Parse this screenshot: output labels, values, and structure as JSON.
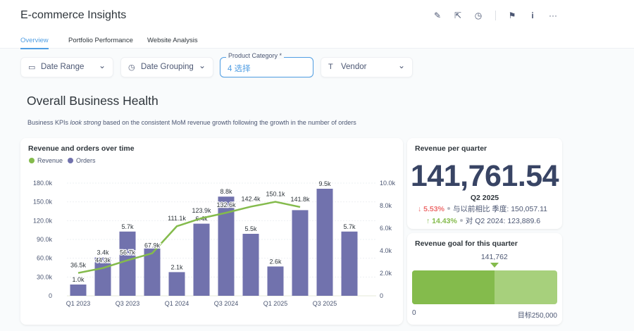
{
  "header": {
    "title": "E-commerce Insights",
    "icons": [
      "pencil-icon",
      "share-icon",
      "clock-icon",
      "bookmark-icon",
      "info-icon",
      "more-icon"
    ]
  },
  "tabs": [
    {
      "label": "Overview",
      "active": true
    },
    {
      "label": "Portfolio Performance"
    },
    {
      "label": "Website Analysis"
    }
  ],
  "filters": {
    "date_range": "Date Range",
    "date_grouping": "Date Grouping",
    "product_category": {
      "label": "Product Category *",
      "value": "4 选择"
    },
    "vendor": "Vendor"
  },
  "section": {
    "title": "Overall Business Health",
    "desc_before": "Business KPIs ",
    "desc_em": "look strong",
    "desc_after": " based on the consistent MoM revenue growth following the growth in the number of orders"
  },
  "chart_data": {
    "type": "bar",
    "title": "Revenue and orders over time",
    "categories": [
      "Q1 2023",
      "Q2 2023",
      "Q3 2023",
      "Q4 2023",
      "Q1 2024",
      "Q2 2024",
      "Q3 2024",
      "Q4 2024",
      "Q1 2025",
      "Q2 2025",
      "Q3 2025",
      "Q4 2025"
    ],
    "x_tick_labels": [
      "Q1 2023",
      "Q3 2023",
      "Q1 2024",
      "Q3 2024",
      "Q1 2025",
      "Q3 2025"
    ],
    "left_ticks": [
      "0",
      "30.0k",
      "60.0k",
      "90.0k",
      "120.0k",
      "150.0k",
      "180.0k"
    ],
    "right_ticks": [
      "0",
      "2.0k",
      "4.0k",
      "6.0k",
      "8.0k",
      "10.0k"
    ],
    "ylim_left": [
      0,
      180000
    ],
    "ylim_right": [
      0,
      10000
    ],
    "grid": true,
    "legend_placement": "top-left",
    "series": [
      {
        "name": "Revenue",
        "type": "line",
        "axis": "left",
        "color": "#84bb4c",
        "values": [
          36500,
          44300,
          56700,
          67900,
          111100,
          123900,
          132600,
          142400,
          150100,
          141800,
          null,
          null
        ],
        "labels": [
          "36.5k",
          "44.3k",
          "56.7k",
          "67.9k",
          "111.1k",
          "123.9k",
          "132.6k",
          "142.4k",
          "150.1k",
          "141.8k",
          null,
          null
        ]
      },
      {
        "name": "Orders",
        "type": "bar",
        "axis": "right",
        "color": "#7172ad",
        "values": [
          1000,
          3400,
          5700,
          4200,
          2100,
          6400,
          8800,
          5500,
          2600,
          7600,
          9500,
          5700
        ],
        "labels": [
          "1.0k",
          "3.4k",
          "5.7k",
          null,
          "2.1k",
          "6.4k",
          "8.8k",
          "5.5k",
          "2.6k",
          null,
          "9.5k",
          "5.7k"
        ]
      }
    ]
  },
  "kpi": {
    "title": "Revenue per quarter",
    "value": "141,761.54",
    "period": "Q2 2025",
    "prev": {
      "pct": "5.53%",
      "label": "与以前相比 季度: 150,057.11",
      "direction": "down",
      "color": "#ed6e6e"
    },
    "yoy": {
      "pct": "14.43%",
      "label": "对 Q2 2024: 123,889.6",
      "direction": "up",
      "color": "#84bb4c"
    }
  },
  "goal": {
    "title": "Revenue goal for this quarter",
    "value_label": "141,762",
    "value": 141762,
    "goal": 250000,
    "min_label": "0",
    "goal_label": "目标250,000",
    "fill_color": "#84bb4c",
    "rest_color": "#a7d07c"
  }
}
